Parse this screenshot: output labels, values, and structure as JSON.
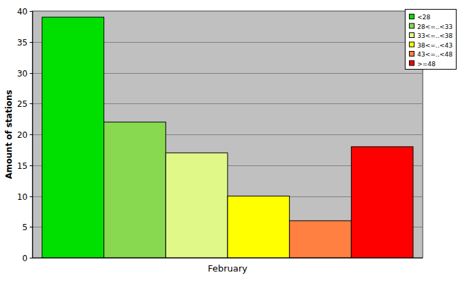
{
  "chart_data": {
    "type": "bar",
    "y_label": "Amount of stations",
    "categories": [
      "February"
    ],
    "series": [
      {
        "name": "<28",
        "color": "#00e000",
        "values": [
          39
        ]
      },
      {
        "name": "28<=..<33",
        "color": "#88d850",
        "values": [
          22
        ]
      },
      {
        "name": "33<=..<38",
        "color": "#e0f888",
        "values": [
          17
        ]
      },
      {
        "name": "38<=..<43",
        "color": "#ffff00",
        "values": [
          10
        ]
      },
      {
        "name": "43<=..<48",
        "color": "#ff8040",
        "values": [
          6
        ]
      },
      {
        "name": ">=48",
        "color": "#ff0000",
        "values": [
          18
        ]
      }
    ],
    "ylim": [
      0,
      40
    ],
    "yticks": [
      0,
      5,
      10,
      15,
      20,
      25,
      30,
      35,
      40
    ],
    "grid": true,
    "legend": "top-right"
  }
}
